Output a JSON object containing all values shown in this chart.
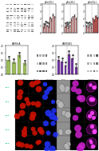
{
  "background_color": "#ffffff",
  "panel_a": {
    "n_rows": 16,
    "n_cols": 8,
    "bg_color": "#cccccc"
  },
  "panel_b": {
    "titles": [
      "pSer2(L)",
      "pSer2(L)",
      "pSer5(L)"
    ],
    "n_bars": 8,
    "bar_color": "#c0504d",
    "ylim": [
      0,
      4
    ],
    "yticks": [
      0,
      1,
      2,
      3,
      4
    ]
  },
  "panel_c": {
    "title": "LAMIN-A",
    "bar_color": "#9bbb59",
    "n_bars": 4,
    "ylim": [
      0,
      2
    ],
    "vals": [
      1.0,
      0.85,
      1.3,
      0.75
    ]
  },
  "panel_d": {
    "title": "LAMIN-B1",
    "bar_color": "#7030a0",
    "n_bars": 6,
    "ylim": [
      0,
      2
    ],
    "vals": [
      1.0,
      0.9,
      0.6,
      1.4,
      1.1,
      0.5
    ]
  },
  "panel_e": {
    "n_rows": 5,
    "n_cols": 7,
    "label_col_color": "#00bb88",
    "red_color": "#cc1100",
    "blue_color": "#2244ff",
    "phase_color": "#888888",
    "merge_color": "#cc22cc",
    "black_bg": "#000000",
    "gray_bg": "#909090"
  }
}
